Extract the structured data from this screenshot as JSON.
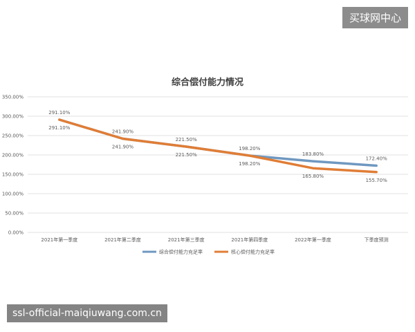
{
  "watermark_top": "买球网中心",
  "watermark_bottom": "ssl-official-maiqiuwang.com.cn",
  "colors": {
    "series_1": "#6f98c0",
    "series_2": "#e07d36",
    "grid": "#d9d9d9",
    "axis_text": "#595959",
    "title_text": "#404040"
  },
  "chart_data": {
    "type": "line",
    "title": "综合偿付能力情况",
    "categories": [
      "2021年第一季度",
      "2021年第二季度",
      "2021年第三季度",
      "2021年第四季度",
      "2022年第一季度",
      "下季度预测"
    ],
    "series": [
      {
        "name": "综合偿付能力充足率",
        "values": [
          291.1,
          241.9,
          221.5,
          198.2,
          183.8,
          172.4
        ],
        "labels": [
          "291.10%",
          "241.90%",
          "221.50%",
          "198.20%",
          "183.80%",
          "172.40%"
        ]
      },
      {
        "name": "核心偿付能力充足率",
        "values": [
          291.1,
          241.9,
          221.5,
          198.2,
          165.8,
          155.7
        ],
        "labels": [
          "291.10%",
          "241.90%",
          "221.50%",
          "198.20%",
          "165.80%",
          "155.70%"
        ]
      }
    ],
    "y_ticks": [
      "0.00%",
      "50.00%",
      "100.00%",
      "150.00%",
      "200.00%",
      "250.00%",
      "300.00%",
      "350.00%"
    ],
    "ylim": [
      0,
      350
    ],
    "grid": true,
    "legend_position": "bottom"
  }
}
